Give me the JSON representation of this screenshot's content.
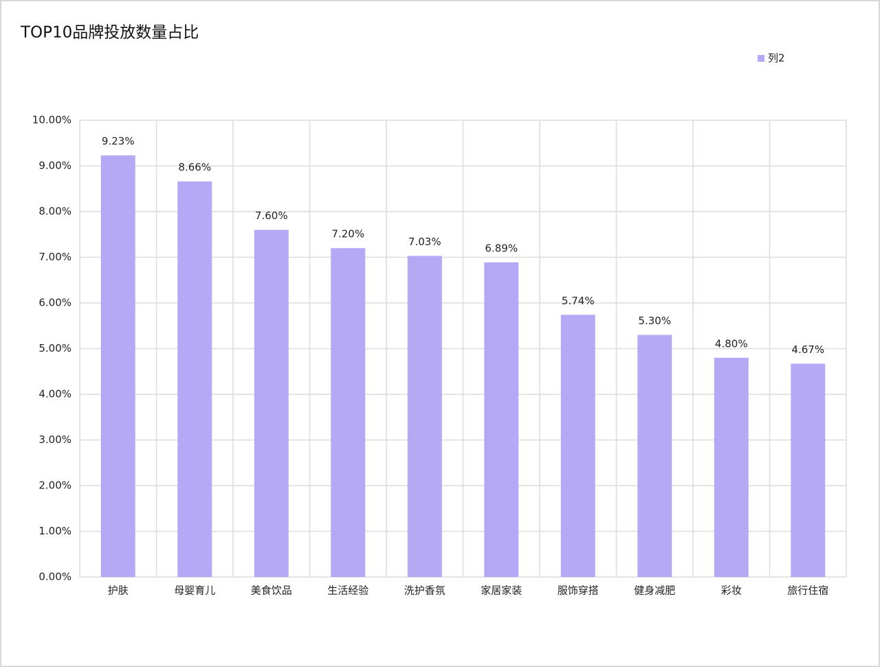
{
  "chart_data": {
    "type": "bar",
    "title": "TOP10品牌投放数量占比",
    "categories": [
      "护肤",
      "母婴育儿",
      "美食饮品",
      "生活经验",
      "洗护香氛",
      "家居家装",
      "服饰穿搭",
      "健身减肥",
      "彩妆",
      "旅行住宿"
    ],
    "series": [
      {
        "name": "列2",
        "color": "#b5a9f5",
        "values": [
          9.23,
          8.66,
          7.6,
          7.2,
          7.03,
          6.89,
          5.74,
          5.3,
          4.8,
          4.67
        ],
        "value_labels": [
          "9.23%",
          "8.66%",
          "7.60%",
          "7.20%",
          "7.03%",
          "6.89%",
          "5.74%",
          "5.30%",
          "4.80%",
          "4.67%"
        ]
      }
    ],
    "ylim": [
      0,
      10
    ],
    "yticks": [
      {
        "value": 0,
        "label": "0.00%"
      },
      {
        "value": 1,
        "label": "1.00%"
      },
      {
        "value": 2,
        "label": "2.00%"
      },
      {
        "value": 3,
        "label": "3.00%"
      },
      {
        "value": 4,
        "label": "4.00%"
      },
      {
        "value": 5,
        "label": "5.00%"
      },
      {
        "value": 6,
        "label": "6.00%"
      },
      {
        "value": 7,
        "label": "7.00%"
      },
      {
        "value": 8,
        "label": "8.00%"
      },
      {
        "value": 9,
        "label": "9.00%"
      },
      {
        "value": 10,
        "label": "10.00%"
      }
    ],
    "grid": true,
    "legend": "top-right"
  }
}
